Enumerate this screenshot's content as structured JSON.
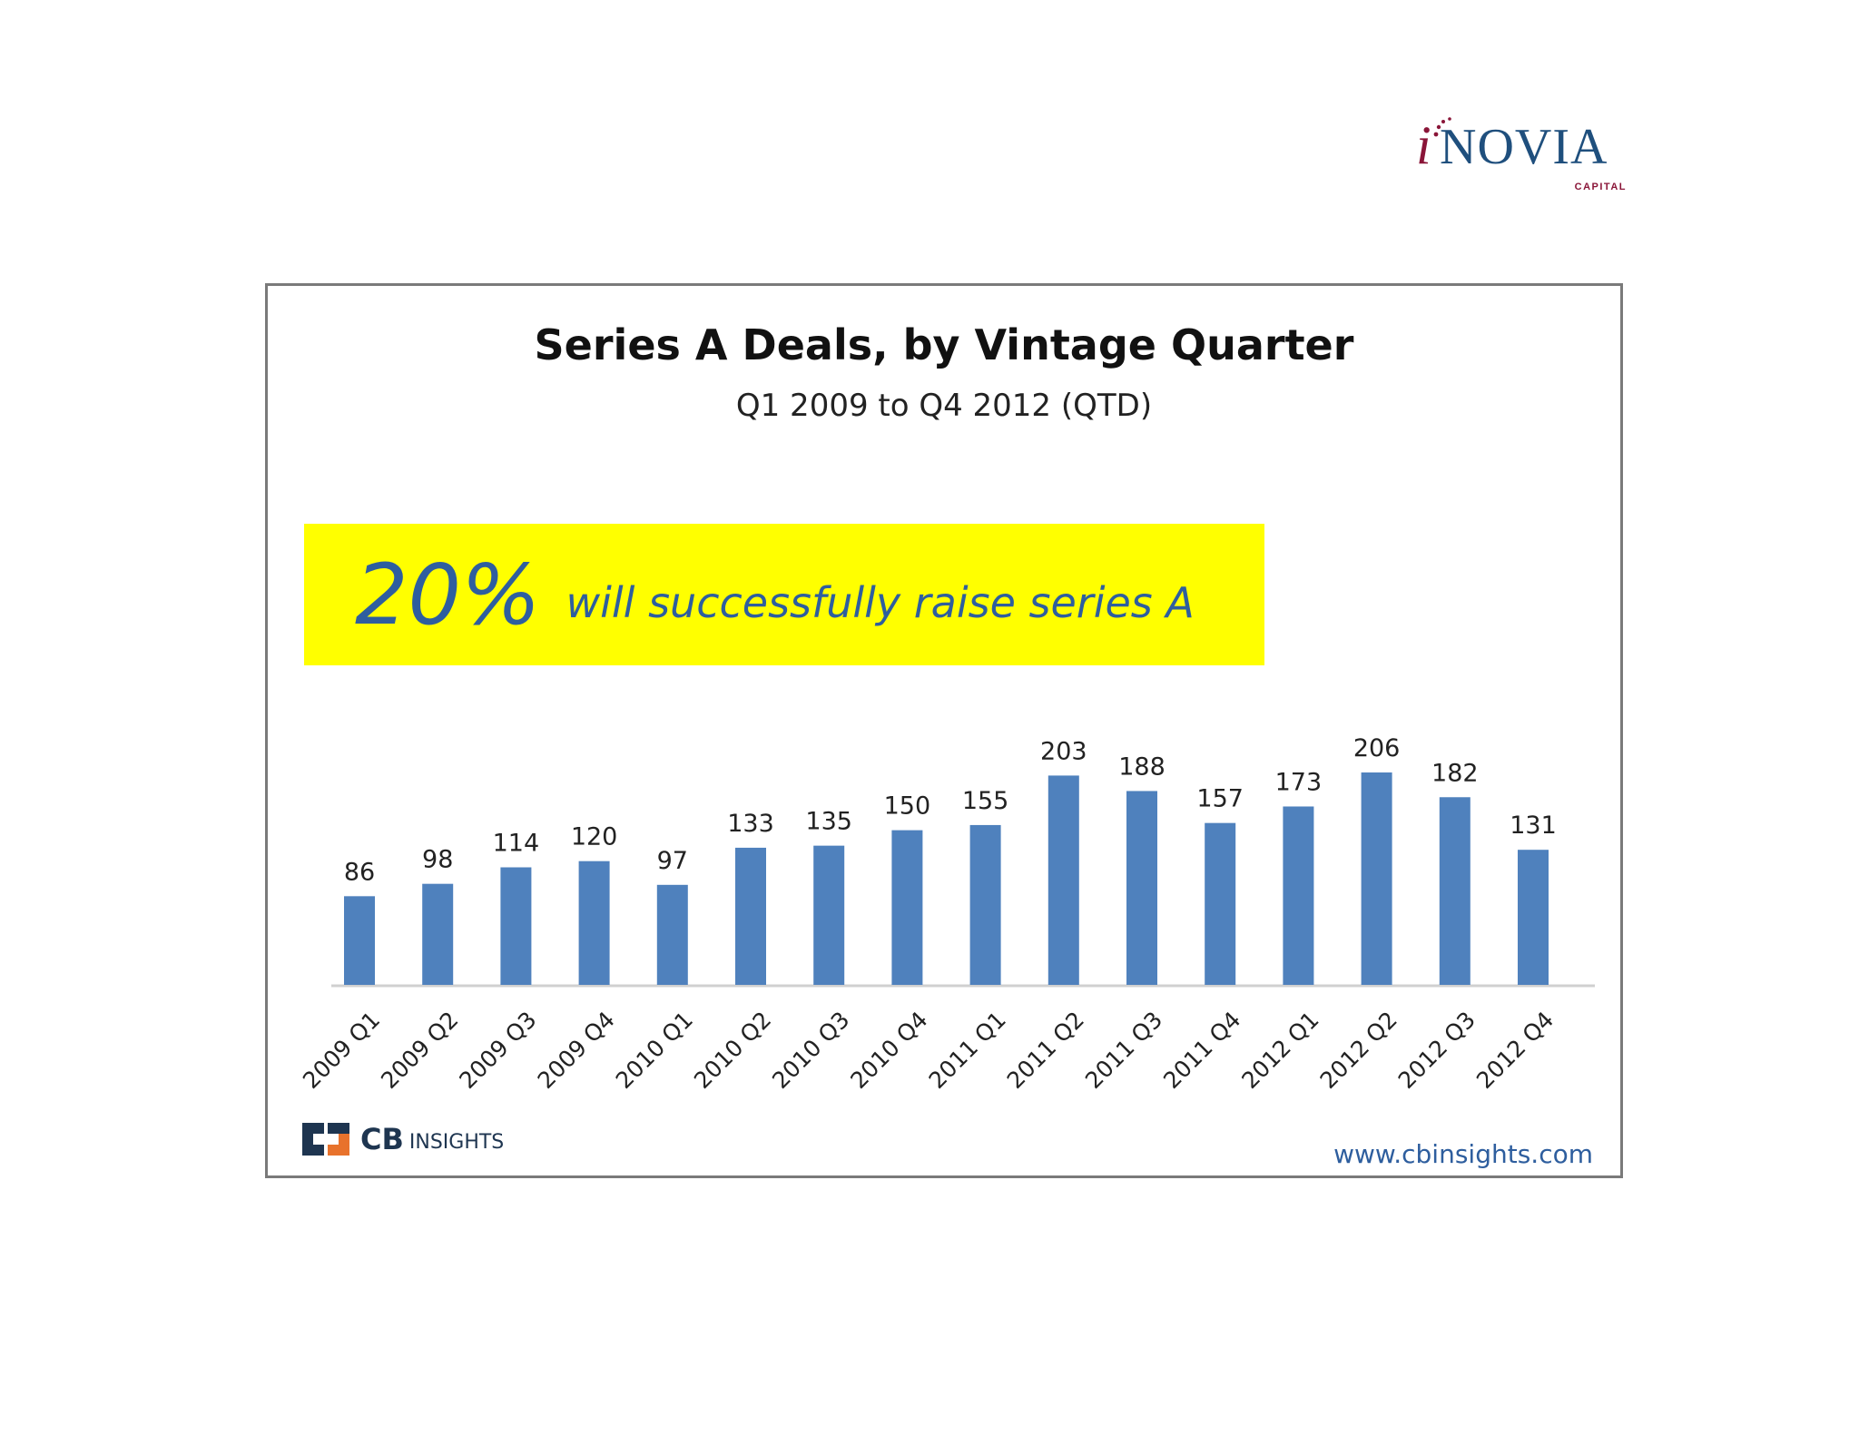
{
  "logo": {
    "i_mark": "i",
    "brand": "NOVIA",
    "capital": "CAPITAL",
    "colors": {
      "primary": "#1f4f7d",
      "accent": "#8a1538"
    }
  },
  "callout": {
    "percent": "20%",
    "text": "will successfully raise series A",
    "background": "#ffff00",
    "text_color": "#2e5e9e"
  },
  "footer": {
    "cb_brand": "CB",
    "cb_insights": "INSIGHTS",
    "source_url": "www.cbinsights.com"
  },
  "chart_data": {
    "type": "bar",
    "title": "Series A Deals, by Vintage Quarter",
    "subtitle": "Q1 2009 to Q4 2012 (QTD)",
    "xlabel": "",
    "ylabel": "",
    "categories": [
      "2009 Q1",
      "2009 Q2",
      "2009 Q3",
      "2009 Q4",
      "2010 Q1",
      "2010 Q2",
      "2010 Q3",
      "2010 Q4",
      "2011 Q1",
      "2011 Q2",
      "2011 Q3",
      "2011 Q4",
      "2012 Q1",
      "2012 Q2",
      "2012 Q3",
      "2012 Q4"
    ],
    "values": [
      86,
      98,
      114,
      120,
      97,
      133,
      135,
      150,
      155,
      203,
      188,
      157,
      173,
      206,
      182,
      131
    ],
    "ylim": [
      0,
      206
    ],
    "grid": false,
    "legend": "none",
    "data_labels": true,
    "bar_color": "#4f81bd"
  }
}
